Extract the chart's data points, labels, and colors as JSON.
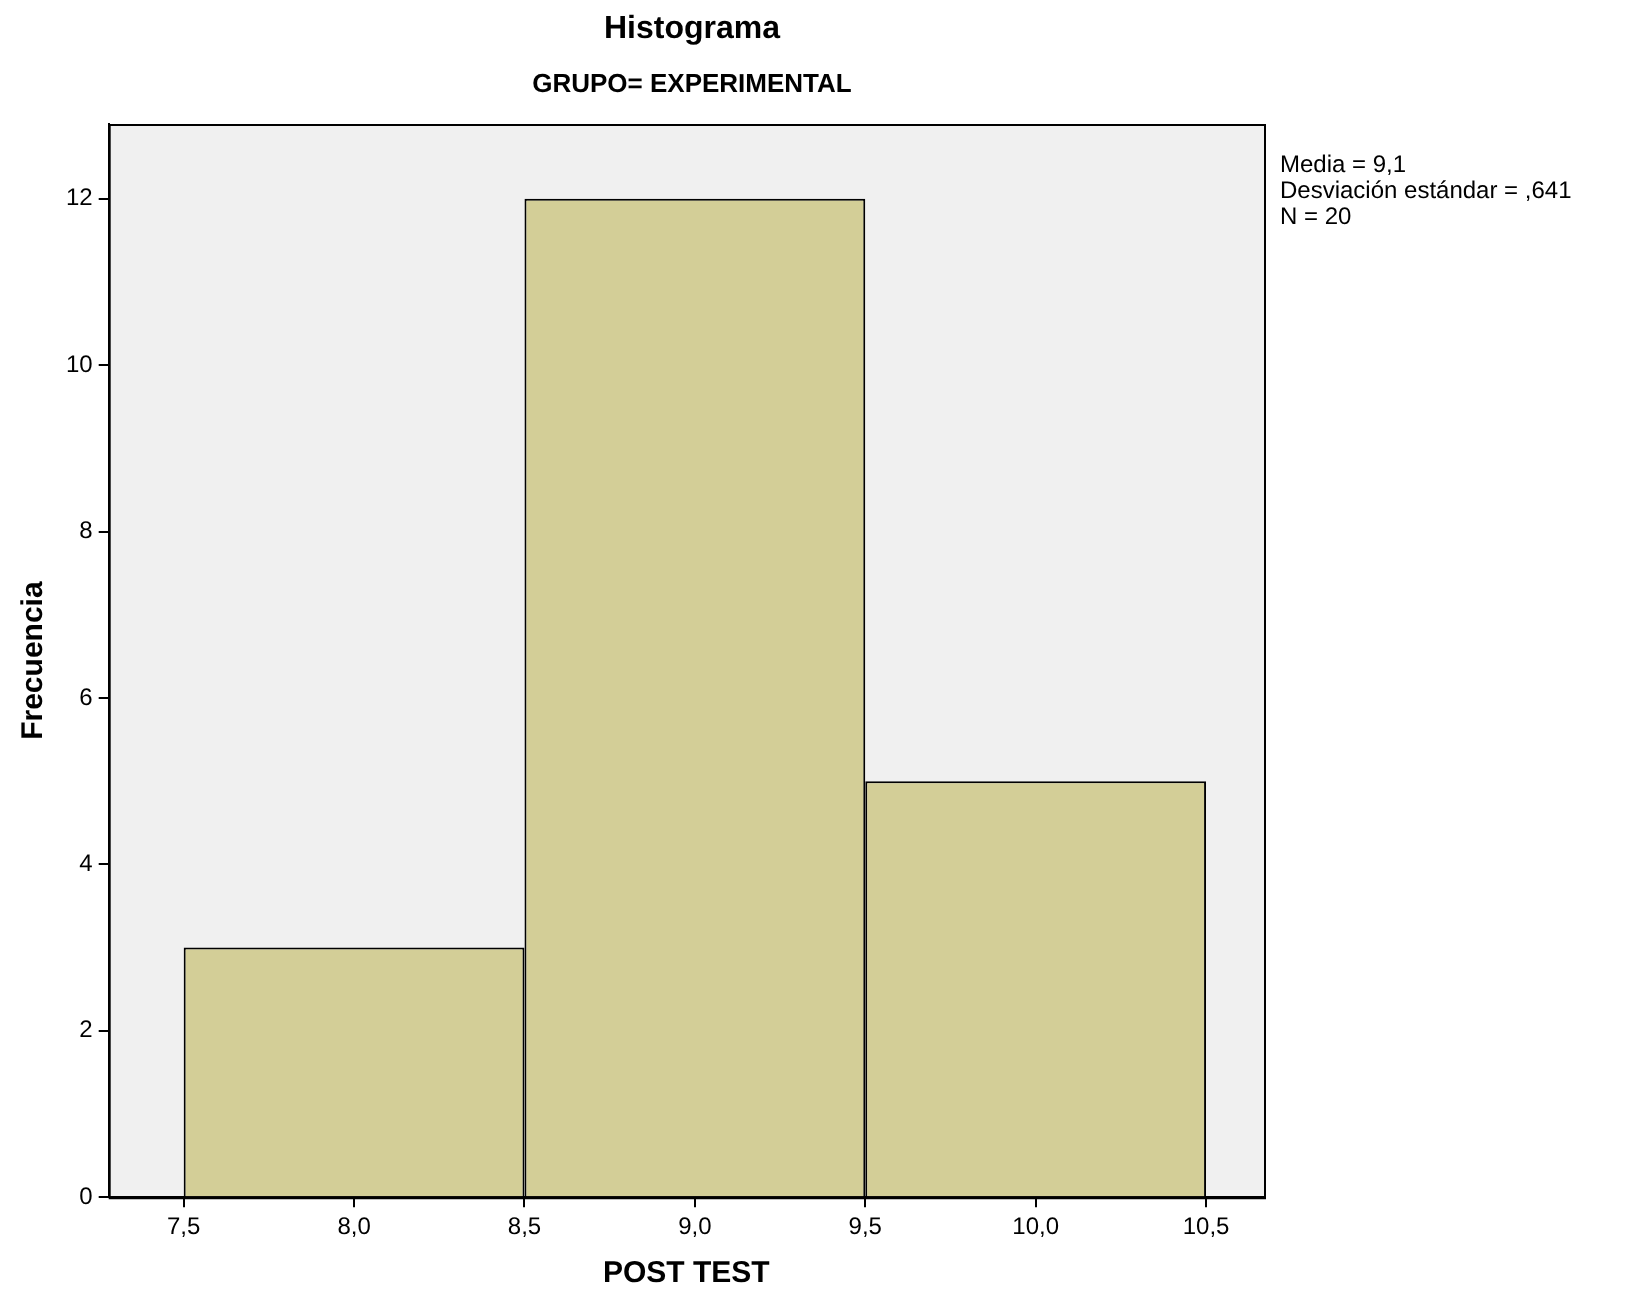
{
  "chart_data": {
    "type": "histogram",
    "title": "Histograma",
    "subtitle": "GRUPO= EXPERIMENTAL",
    "xlabel": "POST TEST",
    "ylabel": "Frecuencia",
    "annotations": [
      "Media = 9,1",
      "Desviación estándar = ,641",
      "N = 20"
    ],
    "bins": [
      7.5,
      8.5,
      9.5,
      10.5
    ],
    "values": [
      3,
      12,
      5
    ],
    "color": "#d3ce97",
    "xlim": [
      7.28,
      10.67
    ],
    "xticks": [
      {
        "value": 7.5,
        "label": "7,5"
      },
      {
        "value": 8,
        "label": "8,0"
      },
      {
        "value": 8.5,
        "label": "8,5"
      },
      {
        "value": 9,
        "label": "9,0"
      },
      {
        "value": 9.5,
        "label": "9,5"
      },
      {
        "value": 10,
        "label": "10,0"
      },
      {
        "value": 10.5,
        "label": "10,5"
      }
    ],
    "ylim": [
      0,
      12.9
    ],
    "yticks": [
      0,
      2,
      4,
      6,
      8,
      10,
      12
    ],
    "grid": false
  }
}
